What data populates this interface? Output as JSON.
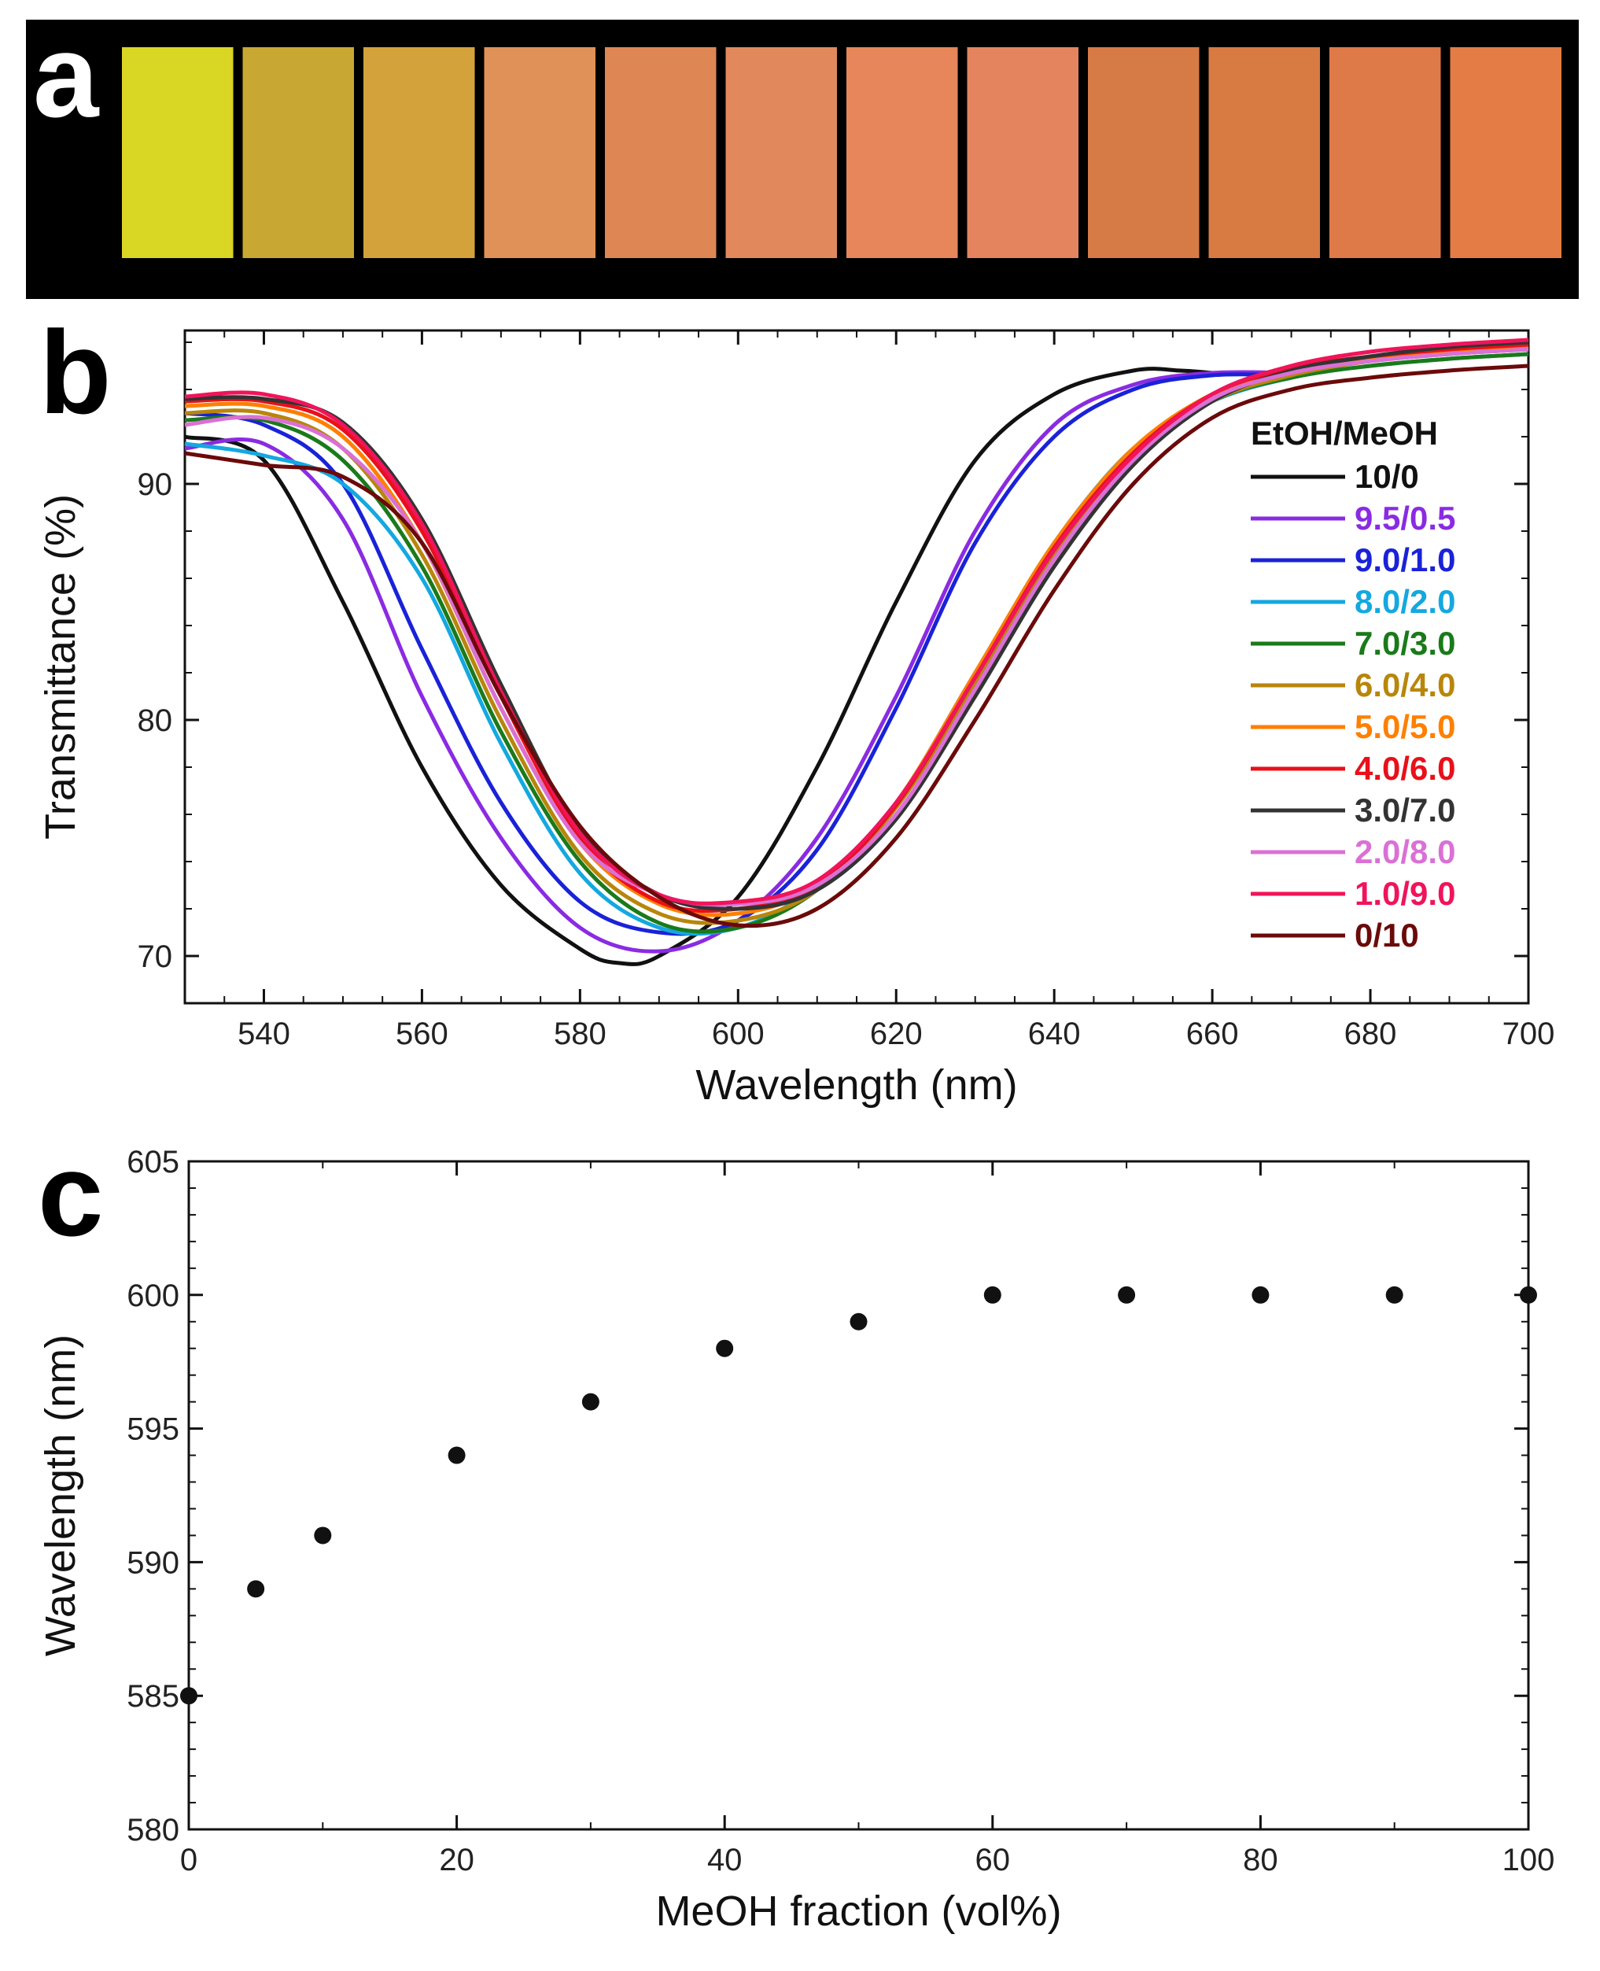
{
  "panels": {
    "a": {
      "letter": "a",
      "film_colors": [
        "#d9d624",
        "#c8a832",
        "#d3a23a",
        "#e09158",
        "#df8655",
        "#e1895c",
        "#e6865a",
        "#e3845f",
        "#d67a46",
        "#d87b43",
        "#de7a47",
        "#e37d45"
      ]
    },
    "b": {
      "letter": "b"
    },
    "c": {
      "letter": "c"
    }
  },
  "chart_data": [
    {
      "type": "line",
      "title": "",
      "xlabel": "Wavelength (nm)",
      "ylabel": "Transmittance (%)",
      "xlim": [
        530,
        700
      ],
      "ylim": [
        68,
        96.5
      ],
      "xticks": [
        540,
        560,
        580,
        600,
        620,
        640,
        660,
        680,
        700
      ],
      "yticks": [
        70,
        80,
        90
      ],
      "legend_title": "EtOH/MeOH",
      "legend_position": "right",
      "series": [
        {
          "name": "10/0",
          "color": "#111111",
          "x": [
            530,
            540,
            550,
            560,
            570,
            580,
            585,
            590,
            600,
            610,
            620,
            630,
            640,
            650,
            656,
            660
          ],
          "values": [
            92,
            91,
            85,
            78,
            73,
            70.3,
            69.7,
            70,
            72.5,
            78,
            85,
            91,
            93.8,
            94.8,
            94.8,
            94.7
          ]
        },
        {
          "name": "9.5/0.5",
          "color": "#8a2be2",
          "x": [
            530,
            540,
            550,
            560,
            570,
            580,
            590,
            600,
            610,
            620,
            630,
            640,
            650,
            660,
            670
          ],
          "values": [
            91.5,
            91.7,
            88.5,
            81,
            75,
            71.2,
            70.2,
            71.5,
            75,
            81,
            88,
            92.5,
            94.2,
            94.7,
            94.7
          ]
        },
        {
          "name": "9.0/1.0",
          "color": "#1a22d8",
          "x": [
            530,
            540,
            550,
            560,
            570,
            580,
            590,
            600,
            610,
            620,
            630,
            640,
            650,
            660,
            670
          ],
          "values": [
            93,
            92.5,
            90,
            83,
            76.5,
            72.3,
            71,
            71.5,
            74.5,
            80.5,
            87.5,
            92,
            94,
            94.6,
            94.6
          ]
        },
        {
          "name": "8.0/2.0",
          "color": "#14a8e0",
          "x": [
            530,
            540,
            550,
            560,
            570,
            580,
            590,
            600,
            610,
            620,
            630,
            640,
            650,
            660,
            670,
            680,
            690,
            700
          ],
          "values": [
            91.7,
            91.2,
            90,
            86,
            79,
            73.5,
            71.2,
            71.2,
            73,
            76.5,
            82,
            87.5,
            91.5,
            93.5,
            94.5,
            95,
            95.3,
            95.5
          ]
        },
        {
          "name": "7.0/3.0",
          "color": "#1a7a1a",
          "x": [
            530,
            540,
            550,
            560,
            570,
            580,
            590,
            600,
            610,
            620,
            630,
            640,
            650,
            660,
            670,
            680,
            690,
            700
          ],
          "values": [
            92.7,
            92.7,
            91,
            86.5,
            79.5,
            74,
            71.4,
            71.2,
            72.8,
            76.3,
            81.5,
            87,
            91,
            93.5,
            94.5,
            95,
            95.3,
            95.5
          ]
        },
        {
          "name": "6.0/4.0",
          "color": "#b8860b",
          "x": [
            530,
            540,
            550,
            560,
            570,
            580,
            590,
            600,
            610,
            620,
            630,
            640,
            650,
            660,
            670,
            680,
            690,
            700
          ],
          "values": [
            93,
            93,
            91.5,
            87,
            80,
            74.3,
            71.8,
            71.5,
            72.8,
            76.3,
            81.5,
            87,
            91,
            93.5,
            94.6,
            95.2,
            95.5,
            95.7
          ]
        },
        {
          "name": "5.0/5.0",
          "color": "#ff7f00",
          "x": [
            530,
            540,
            550,
            560,
            570,
            580,
            590,
            600,
            610,
            620,
            630,
            640,
            650,
            660,
            670,
            680,
            690,
            700
          ],
          "values": [
            93.3,
            93.3,
            92,
            87.5,
            80.5,
            74.8,
            72.2,
            71.8,
            73,
            76.5,
            82,
            87.5,
            91.5,
            93.8,
            94.8,
            95.3,
            95.6,
            95.8
          ]
        },
        {
          "name": "4.0/6.0",
          "color": "#e8101a",
          "x": [
            530,
            540,
            550,
            560,
            570,
            580,
            590,
            600,
            610,
            620,
            630,
            640,
            650,
            660,
            670,
            680,
            690,
            700
          ],
          "values": [
            93.5,
            93.5,
            92.3,
            88,
            81,
            75,
            72.3,
            72,
            73,
            76.4,
            81.8,
            87.3,
            91.3,
            93.8,
            94.9,
            95.4,
            95.7,
            95.9
          ]
        },
        {
          "name": "3.0/7.0",
          "color": "#333333",
          "x": [
            530,
            540,
            550,
            560,
            570,
            580,
            590,
            600,
            610,
            620,
            630,
            640,
            650,
            660,
            670,
            680,
            690,
            700
          ],
          "values": [
            93.6,
            93.6,
            92.6,
            88.5,
            81.5,
            75.3,
            72.6,
            72,
            72.8,
            75.8,
            81,
            86.5,
            90.8,
            93.5,
            94.8,
            95.4,
            95.8,
            96
          ]
        },
        {
          "name": "2.0/8.0",
          "color": "#da70d6",
          "x": [
            530,
            540,
            550,
            560,
            570,
            580,
            590,
            600,
            610,
            620,
            630,
            640,
            650,
            660,
            670,
            680,
            690,
            700
          ],
          "values": [
            92.5,
            92.8,
            91.5,
            87.5,
            80.5,
            74.8,
            72.6,
            72.2,
            73,
            76,
            81.3,
            86.8,
            91,
            93.6,
            94.7,
            95.2,
            95.5,
            95.7
          ]
        },
        {
          "name": "1.0/9.0",
          "color": "#f0145a",
          "x": [
            530,
            540,
            550,
            560,
            570,
            580,
            590,
            600,
            610,
            620,
            630,
            640,
            650,
            660,
            670,
            680,
            690,
            700
          ],
          "values": [
            93.7,
            93.8,
            92.5,
            88.3,
            81.2,
            75.2,
            72.6,
            72.3,
            73.2,
            76.5,
            81.8,
            87.2,
            91.2,
            93.8,
            95,
            95.6,
            95.9,
            96.1
          ]
        },
        {
          "name": "0/10",
          "color": "#6b0a0a",
          "x": [
            530,
            540,
            550,
            560,
            570,
            580,
            590,
            600,
            610,
            620,
            630,
            640,
            650,
            660,
            670,
            680,
            690,
            700
          ],
          "values": [
            91.3,
            90.8,
            90.3,
            87.5,
            81,
            75.5,
            72.5,
            71.3,
            72,
            75,
            80,
            85.5,
            90,
            92.8,
            94,
            94.5,
            94.8,
            95
          ]
        }
      ]
    },
    {
      "type": "scatter",
      "title": "",
      "xlabel": "MeOH fraction (vol%)",
      "ylabel": "Wavelength (nm)",
      "xlim": [
        0,
        100
      ],
      "ylim": [
        580,
        605
      ],
      "xticks": [
        0,
        20,
        40,
        60,
        80,
        100
      ],
      "yticks": [
        580,
        585,
        590,
        595,
        600,
        605
      ],
      "series": [
        {
          "name": "",
          "color": "#111111",
          "x": [
            0,
            5,
            10,
            20,
            30,
            40,
            50,
            60,
            70,
            80,
            90,
            100
          ],
          "values": [
            585,
            589,
            591,
            594,
            596,
            598,
            599,
            600,
            600,
            600,
            600,
            600
          ]
        }
      ]
    }
  ]
}
